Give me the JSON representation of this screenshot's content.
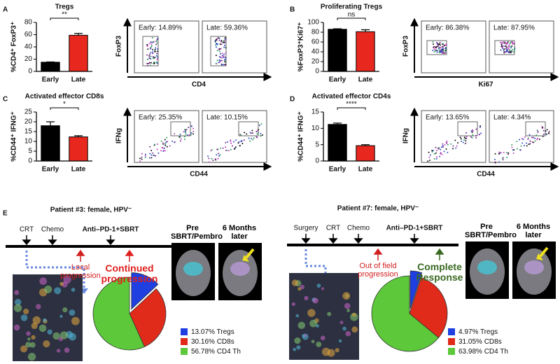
{
  "panel_letters": [
    "A",
    "B",
    "C",
    "D",
    "E"
  ],
  "chart_data": [
    {
      "type": "bar",
      "title": "Tregs",
      "ylabel": "%CD4⁺ FoxP3⁺",
      "categories": [
        "Early",
        "Late"
      ],
      "values": [
        15,
        59
      ],
      "errors": [
        0.5,
        3
      ],
      "colors": [
        "#000000",
        "#e8281e"
      ],
      "ylim": [
        0,
        80
      ],
      "yticks": [
        0,
        20,
        40,
        60,
        80
      ],
      "significance": "**"
    },
    {
      "type": "bar",
      "title": "Proliferating Tregs",
      "ylabel": "%FoxP3⁺Ki67⁺",
      "categories": [
        "Early",
        "Late"
      ],
      "values": [
        86,
        81
      ],
      "errors": [
        1,
        4
      ],
      "colors": [
        "#000000",
        "#e8281e"
      ],
      "ylim": [
        0,
        100
      ],
      "yticks": [
        0,
        20,
        40,
        60,
        80,
        100
      ],
      "significance": "ns"
    },
    {
      "type": "bar",
      "title": "Activated effector CD8s",
      "ylabel": "%CD44⁺ IFNG⁺",
      "categories": [
        "Early",
        "Late"
      ],
      "values": [
        18,
        12.3
      ],
      "errors": [
        2,
        0.6
      ],
      "colors": [
        "#000000",
        "#e8281e"
      ],
      "ylim": [
        0,
        25
      ],
      "yticks": [
        0,
        5,
        10,
        15,
        20,
        25
      ],
      "significance": "*"
    },
    {
      "type": "bar",
      "title": "Activated effector CD4s",
      "ylabel": "%CD44⁺ IFNG⁺",
      "categories": [
        "Early",
        "Late"
      ],
      "values": [
        11.2,
        4.7
      ],
      "errors": [
        0.4,
        0.3
      ],
      "colors": [
        "#000000",
        "#e8281e"
      ],
      "ylim": [
        0,
        15
      ],
      "yticks": [
        0,
        5,
        10,
        15
      ],
      "significance": "****"
    },
    {
      "type": "pie",
      "categories": [
        "Tregs",
        "CD8s",
        "CD4 Th"
      ],
      "values": [
        13.07,
        30.16,
        56.78
      ],
      "value_labels": [
        "13.07%",
        "30.16%",
        "56.78%"
      ],
      "colors": [
        "#1f3fe0",
        "#e02a1a",
        "#5cc83a"
      ]
    },
    {
      "type": "pie",
      "categories": [
        "Tregs",
        "CD8s",
        "CD4 Th"
      ],
      "values": [
        4.97,
        31.05,
        63.98
      ],
      "value_labels": [
        "4.97%",
        "31.05%",
        "63.98%"
      ],
      "colors": [
        "#1f3fe0",
        "#e02a1a",
        "#5cc83a"
      ]
    }
  ],
  "flow_plots": [
    {
      "x_label": "CD4",
      "y_label": "FoxP3",
      "gates": [
        "Early: 14.89%",
        "Late: 59.36%"
      ]
    },
    {
      "x_label": "Ki67",
      "y_label": "FoxP3",
      "gates": [
        "Early: 86.38%",
        "Late: 87.95%"
      ]
    },
    {
      "x_label": "CD44",
      "y_label": "IFNg",
      "gates": [
        "Early: 25.35%",
        "Late: 10.15%"
      ]
    },
    {
      "x_label": "CD44",
      "y_label": "IFNg",
      "gates": [
        "Early: 13.65%",
        "Late: 4.34%"
      ]
    }
  ],
  "patients": [
    {
      "title": "Patient #3: female, HPV⁻",
      "events": [
        "CRT",
        "Chemo",
        "Anti–PD-1+SBRT"
      ],
      "outcomes": [
        "Local progression",
        "Continued progression"
      ],
      "scan_labels": [
        "Pre SBRT/Pembro",
        "6 Months later"
      ]
    },
    {
      "title": "Patient #7: female, HPV⁻",
      "events": [
        "Surgery",
        "CRT",
        "Chemo",
        "Anti–PD-1+SBRT"
      ],
      "outcomes": [
        "Out of field progression",
        "Complete Response"
      ],
      "scan_labels": [
        "Pre SBRT/Pembro",
        "6 Months later"
      ]
    }
  ]
}
